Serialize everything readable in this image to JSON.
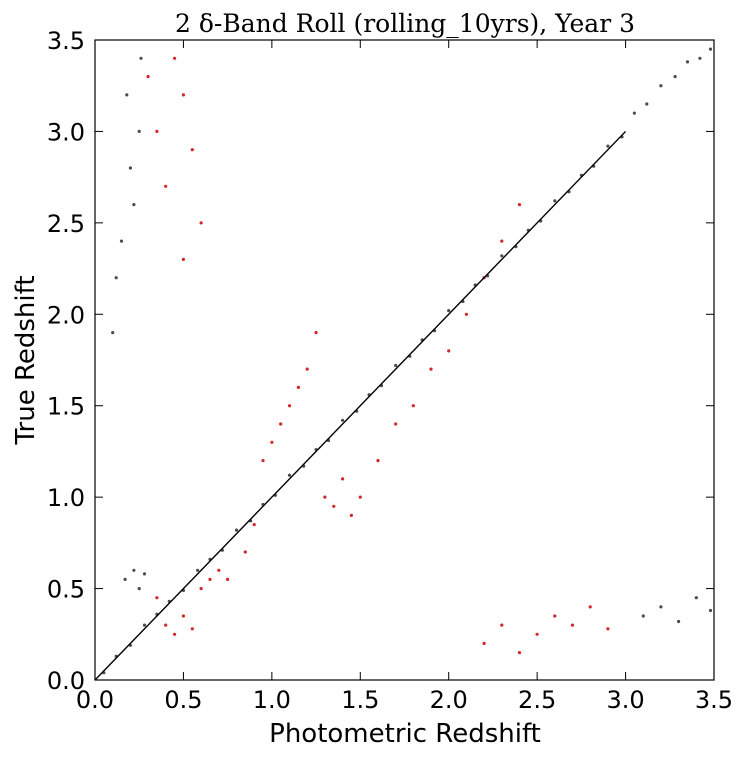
{
  "chart_data": {
    "type": "scatter",
    "title": "2 δ-Band Roll (rolling_10yrs),  Year 3",
    "xlabel": "Photometric Redshift",
    "ylabel": "True Redshift",
    "xlim": [
      0.0,
      3.5
    ],
    "ylim": [
      0.0,
      3.5
    ],
    "x_ticks": [
      "0.0",
      "0.5",
      "1.0",
      "1.5",
      "2.0",
      "2.5",
      "3.0",
      "3.5"
    ],
    "y_ticks": [
      "0.0",
      "0.5",
      "1.0",
      "1.5",
      "2.0",
      "2.5",
      "3.0",
      "3.5"
    ],
    "grid": false,
    "legend": "none",
    "colors": {
      "main_points": "#000000",
      "outlier_points": "#cc0000",
      "reference_line": "#000000"
    },
    "reference_line": {
      "x": [
        0.0,
        3.0
      ],
      "y": [
        0.0,
        3.0
      ]
    },
    "series": [
      {
        "values": [
          [
            0.05,
            0.04
          ],
          [
            0.12,
            0.13
          ],
          [
            0.2,
            0.19
          ],
          [
            0.28,
            0.3
          ],
          [
            0.35,
            0.36
          ],
          [
            0.42,
            0.43
          ],
          [
            0.5,
            0.49
          ],
          [
            0.58,
            0.6
          ],
          [
            0.65,
            0.66
          ],
          [
            0.72,
            0.71
          ],
          [
            0.8,
            0.82
          ],
          [
            0.88,
            0.87
          ],
          [
            0.95,
            0.96
          ],
          [
            1.02,
            1.01
          ],
          [
            1.1,
            1.12
          ],
          [
            1.18,
            1.17
          ],
          [
            1.25,
            1.26
          ],
          [
            1.32,
            1.31
          ],
          [
            1.4,
            1.42
          ],
          [
            1.48,
            1.47
          ],
          [
            1.55,
            1.56
          ],
          [
            1.62,
            1.61
          ],
          [
            1.7,
            1.72
          ],
          [
            1.78,
            1.77
          ],
          [
            1.85,
            1.86
          ],
          [
            1.92,
            1.91
          ],
          [
            2.0,
            2.02
          ],
          [
            2.08,
            2.07
          ],
          [
            2.15,
            2.16
          ],
          [
            2.22,
            2.21
          ],
          [
            2.3,
            2.32
          ],
          [
            2.38,
            2.37
          ],
          [
            2.45,
            2.46
          ],
          [
            2.52,
            2.51
          ],
          [
            2.6,
            2.62
          ],
          [
            2.68,
            2.67
          ],
          [
            2.75,
            2.76
          ],
          [
            2.82,
            2.81
          ],
          [
            2.9,
            2.92
          ],
          [
            2.98,
            2.97
          ],
          [
            3.05,
            3.1
          ],
          [
            3.12,
            3.15
          ],
          [
            3.2,
            3.25
          ],
          [
            3.28,
            3.3
          ],
          [
            3.35,
            3.38
          ],
          [
            3.42,
            3.4
          ],
          [
            3.48,
            3.45
          ],
          [
            0.15,
            2.4
          ],
          [
            0.2,
            2.8
          ],
          [
            0.25,
            3.0
          ],
          [
            0.12,
            2.2
          ],
          [
            0.18,
            3.2
          ],
          [
            0.22,
            2.6
          ],
          [
            0.26,
            3.4
          ],
          [
            0.1,
            1.9
          ],
          [
            0.17,
            0.55
          ],
          [
            0.22,
            0.6
          ],
          [
            0.25,
            0.5
          ],
          [
            0.28,
            0.58
          ],
          [
            3.1,
            0.35
          ],
          [
            3.2,
            0.4
          ],
          [
            3.3,
            0.32
          ],
          [
            3.4,
            0.45
          ],
          [
            3.48,
            0.38
          ]
        ]
      },
      {
        "values": [
          [
            0.35,
            0.45
          ],
          [
            0.4,
            0.3
          ],
          [
            0.45,
            0.25
          ],
          [
            0.5,
            0.35
          ],
          [
            0.55,
            0.28
          ],
          [
            0.6,
            0.5
          ],
          [
            0.65,
            0.55
          ],
          [
            0.7,
            0.6
          ],
          [
            0.75,
            0.55
          ],
          [
            0.85,
            0.7
          ],
          [
            0.9,
            0.85
          ],
          [
            0.95,
            1.2
          ],
          [
            1.0,
            1.3
          ],
          [
            1.05,
            1.4
          ],
          [
            1.1,
            1.5
          ],
          [
            1.15,
            1.6
          ],
          [
            1.2,
            1.7
          ],
          [
            1.25,
            1.9
          ],
          [
            1.3,
            1.0
          ],
          [
            1.35,
            0.95
          ],
          [
            1.4,
            1.1
          ],
          [
            1.45,
            0.9
          ],
          [
            1.5,
            1.0
          ],
          [
            1.6,
            1.2
          ],
          [
            1.7,
            1.4
          ],
          [
            1.8,
            1.5
          ],
          [
            1.9,
            1.7
          ],
          [
            2.0,
            1.8
          ],
          [
            2.1,
            2.0
          ],
          [
            2.2,
            2.2
          ],
          [
            2.3,
            2.4
          ],
          [
            2.4,
            2.6
          ],
          [
            0.3,
            3.3
          ],
          [
            0.35,
            3.0
          ],
          [
            0.4,
            2.7
          ],
          [
            0.45,
            3.4
          ],
          [
            0.5,
            2.3
          ],
          [
            0.55,
            2.9
          ],
          [
            0.6,
            2.5
          ],
          [
            0.5,
            3.2
          ],
          [
            2.2,
            0.2
          ],
          [
            2.3,
            0.3
          ],
          [
            2.4,
            0.15
          ],
          [
            2.5,
            0.25
          ],
          [
            2.6,
            0.35
          ],
          [
            2.7,
            0.3
          ],
          [
            2.8,
            0.4
          ],
          [
            2.9,
            0.28
          ]
        ]
      }
    ]
  }
}
